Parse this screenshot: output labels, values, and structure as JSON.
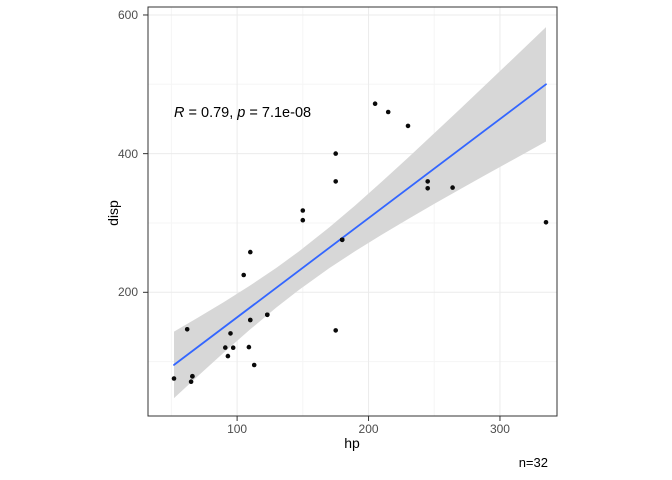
{
  "annotation": {
    "r_symbol": "R",
    "r_rest": " = 0.79, ",
    "p_symbol": "p",
    "p_rest": " = 7.1e-08"
  },
  "footer": {
    "n_label": "n=32"
  },
  "chart_data": {
    "type": "scatter",
    "title": "",
    "xlabel": "hp",
    "ylabel": "disp",
    "xlim": [
      32.2,
      343.4
    ],
    "ylim": [
      21.6,
      611.5
    ],
    "x_major_ticks": [
      100,
      200,
      300
    ],
    "y_major_ticks": [
      200,
      400,
      600
    ],
    "x_minor_ticks": [
      50,
      150,
      250
    ],
    "y_minor_ticks": [
      100,
      300,
      500
    ],
    "grid": true,
    "n": 32,
    "correlation": {
      "R": 0.79,
      "p": "7.1e-08"
    },
    "points": [
      [
        110,
        160
      ],
      [
        110,
        160
      ],
      [
        93,
        108
      ],
      [
        110,
        258
      ],
      [
        175,
        360
      ],
      [
        105,
        225
      ],
      [
        245,
        360
      ],
      [
        62,
        146.7
      ],
      [
        95,
        140.8
      ],
      [
        123,
        167.6
      ],
      [
        123,
        167.6
      ],
      [
        180,
        275.8
      ],
      [
        180,
        275.8
      ],
      [
        180,
        275.8
      ],
      [
        205,
        472
      ],
      [
        215,
        460
      ],
      [
        230,
        440
      ],
      [
        66,
        78.7
      ],
      [
        52,
        75.7
      ],
      [
        65,
        71.1
      ],
      [
        97,
        120.1
      ],
      [
        150,
        318
      ],
      [
        150,
        304
      ],
      [
        245,
        350
      ],
      [
        175,
        400
      ],
      [
        66,
        79
      ],
      [
        91,
        120.3
      ],
      [
        113,
        95.1
      ],
      [
        264,
        351
      ],
      [
        175,
        145
      ],
      [
        335,
        301
      ],
      [
        109,
        121
      ]
    ],
    "regression_line": {
      "x": [
        52,
        335
      ],
      "y": [
        95.3,
        500.0
      ],
      "color": "#3366FF"
    },
    "confidence_band": {
      "x": [
        52,
        70,
        90,
        110,
        130,
        146.7,
        170,
        190,
        210,
        230,
        250,
        270,
        290,
        310,
        335
      ],
      "lower": [
        47.4,
        78.9,
        113.3,
        146.6,
        178.2,
        202.9,
        234.6,
        259.6,
        283.1,
        305.6,
        327.5,
        349.0,
        370.3,
        391.3,
        417.5
      ],
      "upper": [
        143.3,
        163.2,
        186.0,
        209.9,
        235.5,
        258.6,
        293.5,
        325.7,
        359.4,
        394.1,
        429.3,
        465.0,
        501.0,
        537.1,
        582.5
      ],
      "fill": "#D7D7D7"
    },
    "colors": {
      "point": "#0a0a0a",
      "grid_major": "#EBEBEB",
      "grid_minor": "#F5F5F5",
      "panel_border": "#333333",
      "tick_mark": "#333333",
      "tick_label": "#4d4d4d"
    }
  }
}
